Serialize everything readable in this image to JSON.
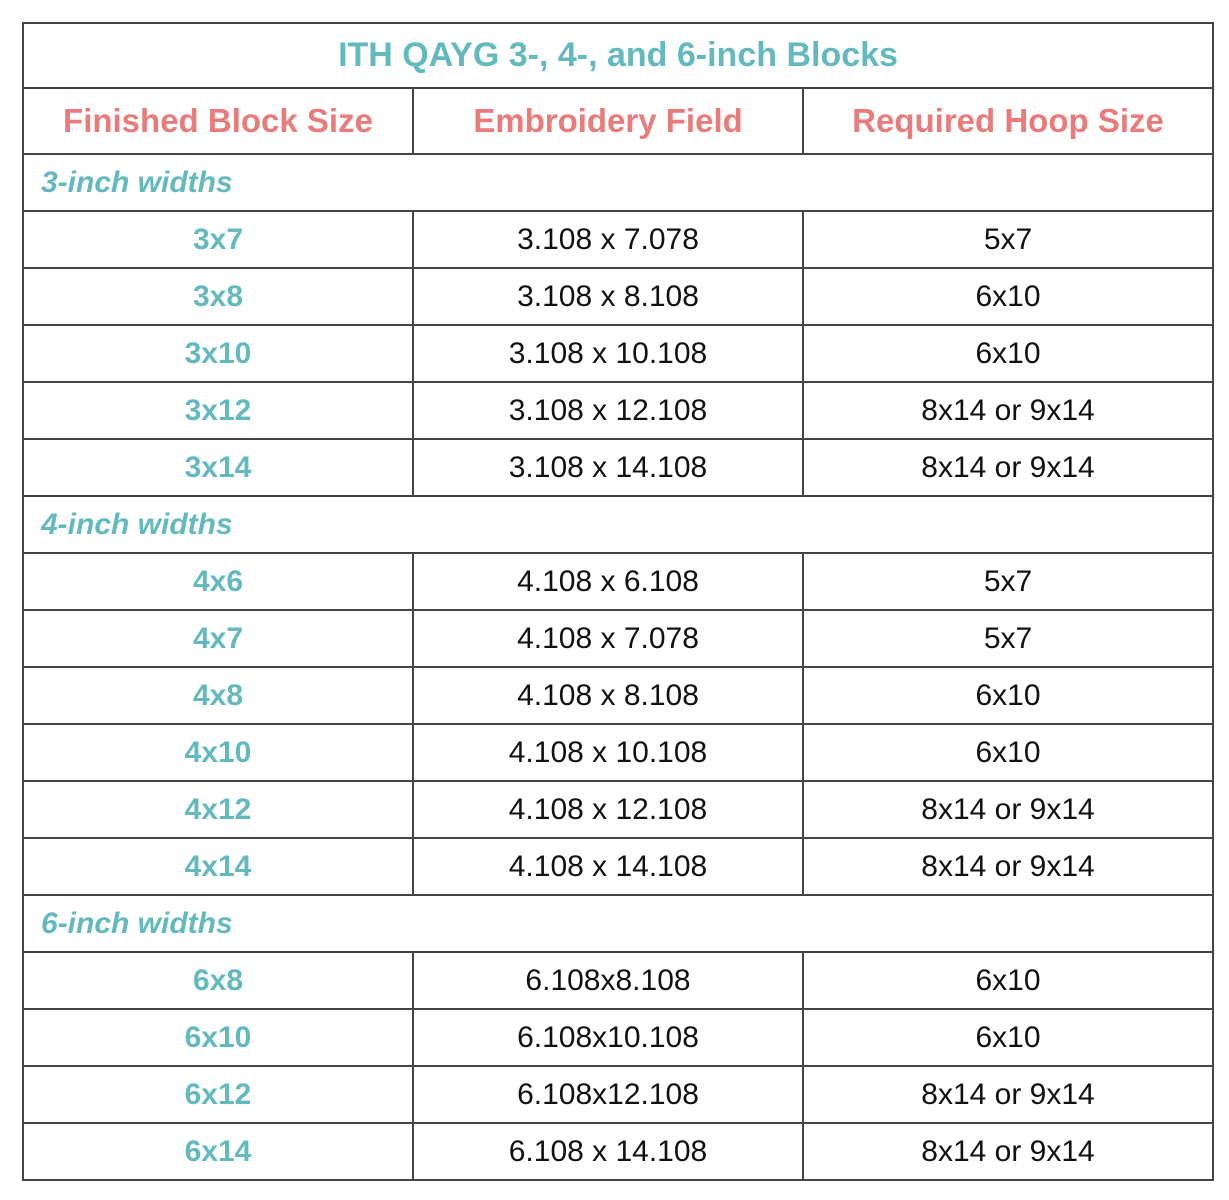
{
  "title": "ITH QAYG 3-, 4-, and 6-inch Blocks",
  "columns": [
    "Finished Block Size",
    "Embroidery Field",
    "Required Hoop Size"
  ],
  "colors": {
    "teal": "#63b9bd",
    "coral": "#e97b7b",
    "border": "#444444"
  },
  "sections": [
    {
      "label": "3-inch widths",
      "rows": [
        [
          "3x7",
          "3.108 x 7.078",
          "5x7"
        ],
        [
          "3x8",
          "3.108 x 8.108",
          "6x10"
        ],
        [
          "3x10",
          "3.108 x 10.108",
          "6x10"
        ],
        [
          "3x12",
          "3.108 x 12.108",
          "8x14 or 9x14"
        ],
        [
          "3x14",
          "3.108 x 14.108",
          "8x14 or 9x14"
        ]
      ]
    },
    {
      "label": "4-inch widths",
      "rows": [
        [
          "4x6",
          "4.108 x 6.108",
          "5x7"
        ],
        [
          "4x7",
          "4.108 x 7.078",
          "5x7"
        ],
        [
          "4x8",
          "4.108 x 8.108",
          "6x10"
        ],
        [
          "4x10",
          "4.108 x 10.108",
          "6x10"
        ],
        [
          "4x12",
          "4.108 x 12.108",
          "8x14 or 9x14"
        ],
        [
          "4x14",
          "4.108 x 14.108",
          "8x14 or 9x14"
        ]
      ]
    },
    {
      "label": "6-inch widths",
      "rows": [
        [
          "6x8",
          "6.108x8.108",
          "6x10"
        ],
        [
          "6x10",
          "6.108x10.108",
          "6x10"
        ],
        [
          "6x12",
          "6.108x12.108",
          "8x14 or 9x14"
        ],
        [
          "6x14",
          "6.108 x 14.108",
          "8x14 or 9x14"
        ]
      ]
    }
  ]
}
